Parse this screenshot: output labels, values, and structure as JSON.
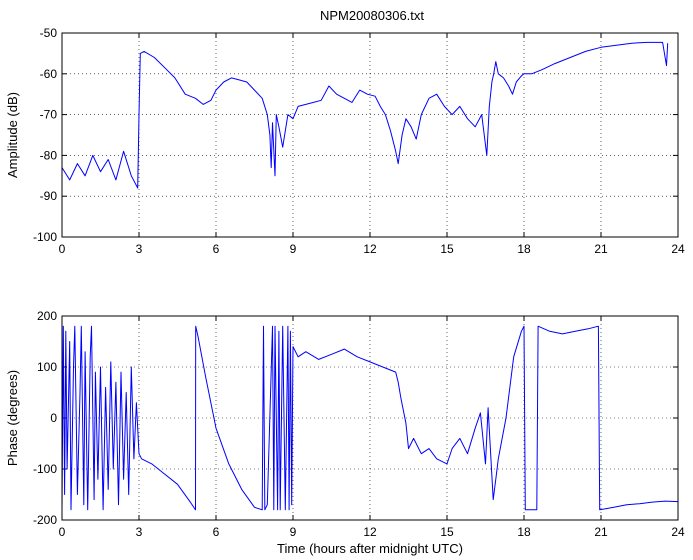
{
  "chart_data": [
    {
      "type": "line",
      "title": "NPM20080306.txt",
      "xlabel": "",
      "ylabel": "Amplitude (dB)",
      "xlim": [
        0,
        24
      ],
      "ylim": [
        -100,
        -50
      ],
      "x_ticks": [
        "0",
        "3",
        "6",
        "9",
        "12",
        "15",
        "18",
        "21",
        "24"
      ],
      "y_ticks": [
        "-100",
        "-90",
        "-80",
        "-70",
        "-60",
        "-50"
      ],
      "grid": true,
      "color": "#0000ff",
      "series": [
        {
          "x": [
            0,
            0.3,
            0.6,
            0.9,
            1.2,
            1.5,
            1.8,
            2.1,
            2.4,
            2.7,
            2.95,
            3.0,
            3.05,
            3.2,
            3.6,
            4.0,
            4.4,
            4.8,
            5.2,
            5.5,
            5.8,
            6.0,
            6.3,
            6.6,
            6.9,
            7.2,
            7.5,
            7.8,
            8.0,
            8.1,
            8.15,
            8.2,
            8.3,
            8.35,
            8.45,
            8.6,
            8.8,
            9.0,
            9.2,
            9.5,
            9.8,
            10.1,
            10.4,
            10.7,
            11.0,
            11.3,
            11.6,
            11.9,
            12.2,
            12.4,
            12.6,
            12.8,
            13.0,
            13.1,
            13.25,
            13.4,
            13.6,
            13.8,
            14.0,
            14.3,
            14.6,
            14.9,
            15.2,
            15.5,
            15.8,
            16.1,
            16.35,
            16.55,
            16.65,
            16.75,
            16.82,
            16.9,
            17.0,
            17.2,
            17.4,
            17.55,
            17.7,
            17.9,
            18.0,
            18.3,
            18.7,
            19.2,
            19.8,
            20.4,
            21.0,
            21.6,
            22.2,
            22.8,
            23.4,
            23.55,
            23.6
          ],
          "y": [
            -83,
            -86,
            -82,
            -85,
            -80,
            -84,
            -81,
            -86,
            -79,
            -85,
            -88,
            -70,
            -55,
            -54.5,
            -56,
            -58.5,
            -61,
            -65,
            -66,
            -67.5,
            -66.5,
            -64,
            -62,
            -61,
            -61.5,
            -62,
            -64,
            -66,
            -70,
            -75,
            -83,
            -72,
            -85,
            -70,
            -73,
            -78,
            -70,
            -71,
            -68,
            -67.5,
            -67,
            -66.5,
            -63,
            -65,
            -66,
            -67,
            -64,
            -65,
            -65.5,
            -68,
            -70,
            -74,
            -79,
            -82,
            -75,
            -71,
            -73,
            -76,
            -70,
            -66,
            -65,
            -68,
            -70,
            -68,
            -71,
            -73,
            -70,
            -80,
            -68,
            -62,
            -60,
            -57,
            -60,
            -61,
            -63,
            -65,
            -62,
            -60.5,
            -60,
            -60,
            -59,
            -57.5,
            -56,
            -54.5,
            -53.5,
            -53,
            -52.5,
            -52.3,
            -52.3,
            -58,
            -52.5
          ]
        }
      ]
    },
    {
      "type": "line",
      "title": "",
      "xlabel": "Time (hours after midnight UTC)",
      "ylabel": "Phase (degrees)",
      "xlim": [
        0,
        24
      ],
      "ylim": [
        -200,
        200
      ],
      "x_ticks": [
        "0",
        "3",
        "6",
        "9",
        "12",
        "15",
        "18",
        "21",
        "24"
      ],
      "y_ticks": [
        "-200",
        "-100",
        "0",
        "100",
        "200"
      ],
      "grid": true,
      "color": "#0000ff",
      "series": [
        {
          "x": [
            0,
            0.05,
            0.1,
            0.15,
            0.2,
            0.3,
            0.35,
            0.45,
            0.5,
            0.6,
            0.7,
            0.75,
            0.85,
            0.9,
            1.0,
            1.1,
            1.15,
            1.25,
            1.3,
            1.4,
            1.5,
            1.6,
            1.7,
            1.8,
            1.9,
            2.0,
            2.1,
            2.2,
            2.3,
            2.4,
            2.5,
            2.6,
            2.7,
            2.8,
            2.9,
            3.0,
            3.1,
            3.5,
            4.0,
            4.5,
            5.0,
            5.2,
            5.21,
            5.3,
            5.6,
            6.0,
            6.5,
            7.0,
            7.5,
            7.8,
            7.85,
            7.9,
            8.0,
            8.2,
            8.25,
            8.3,
            8.4,
            8.45,
            8.5,
            8.6,
            8.7,
            8.8,
            8.85,
            8.9,
            8.95,
            9.0,
            9.2,
            9.5,
            10.0,
            10.5,
            11.0,
            11.5,
            12.0,
            12.5,
            13.0,
            13.1,
            13.2,
            13.4,
            13.5,
            13.7,
            14.0,
            14.3,
            14.6,
            15.0,
            15.2,
            15.5,
            15.8,
            16.1,
            16.3,
            16.5,
            16.6,
            16.8,
            16.9,
            17.0,
            17.3,
            17.6,
            17.9,
            18.0,
            18.05,
            18.5,
            18.55,
            19.0,
            19.5,
            20.0,
            20.5,
            20.9,
            20.95,
            21.5,
            22.0,
            22.5,
            23.0,
            23.5,
            24.0
          ],
          "y": [
            -180,
            180,
            -150,
            170,
            -100,
            150,
            -180,
            100,
            180,
            -150,
            50,
            180,
            -170,
            130,
            -180,
            120,
            180,
            -160,
            90,
            -120,
            100,
            -180,
            60,
            -140,
            110,
            -100,
            70,
            -170,
            90,
            -120,
            50,
            -150,
            100,
            -80,
            30,
            -70,
            -80,
            -90,
            -110,
            -130,
            -165,
            -180,
            180,
            160,
            80,
            -20,
            -90,
            -140,
            -175,
            -180,
            180,
            -180,
            -170,
            180,
            -180,
            180,
            -180,
            170,
            -180,
            180,
            -180,
            180,
            -180,
            170,
            -170,
            140,
            120,
            130,
            115,
            125,
            135,
            120,
            110,
            100,
            90,
            70,
            40,
            -10,
            -60,
            -40,
            -70,
            -60,
            -80,
            -90,
            -60,
            -40,
            -70,
            -20,
            10,
            -90,
            20,
            -160,
            -120,
            -80,
            0,
            120,
            170,
            180,
            -180,
            -180,
            180,
            170,
            165,
            170,
            175,
            180,
            -180,
            -175,
            -170,
            -168,
            -165,
            -163,
            -164
          ]
        }
      ]
    }
  ]
}
